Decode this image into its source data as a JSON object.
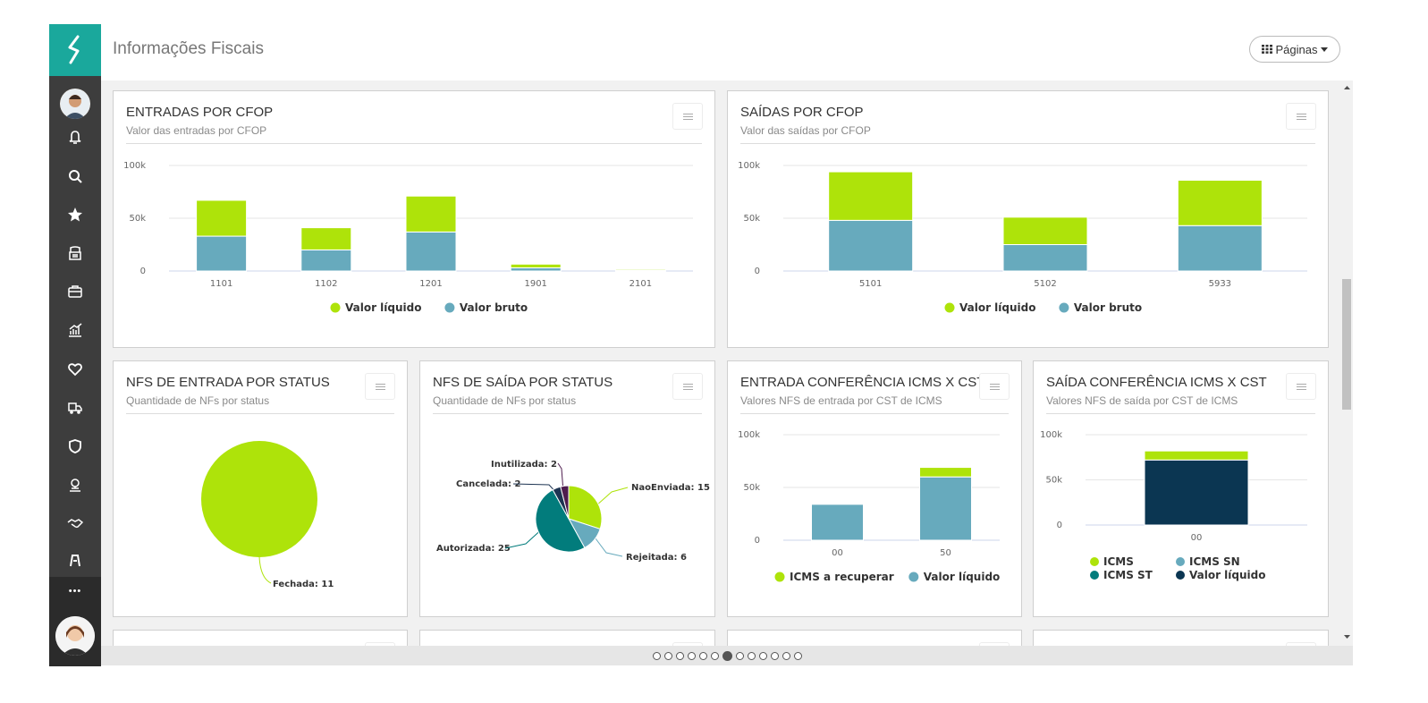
{
  "header": {
    "title": "Informações Fiscais",
    "pages_button": "Páginas"
  },
  "sidebar": {
    "icons": [
      "bell-icon",
      "search-icon",
      "star-icon",
      "printer-icon",
      "briefcase-icon",
      "chart-icon",
      "heart-icon",
      "truck-icon",
      "shield-icon",
      "gears-icon",
      "handshake-icon",
      "bank-icon"
    ],
    "more_label": "•••"
  },
  "colors": {
    "green": "#aee30a",
    "teal": "#67aabd",
    "dark_teal": "#027c7c",
    "navy": "#0b3652",
    "purple": "#4e1c4e",
    "navy2": "#1d3452"
  },
  "cards": {
    "entradas_cfop": {
      "title": "ENTRADAS POR CFOP",
      "subtitle": "Valor das entradas por CFOP",
      "chart_data": {
        "type": "bar",
        "stacked": true,
        "categories": [
          "1101",
          "1102",
          "1201",
          "1901",
          "2101"
        ],
        "series": [
          {
            "name": "Valor líquido",
            "color": "#aee30a",
            "values": [
              34000,
              21000,
              34000,
              3500,
              1000
            ]
          },
          {
            "name": "Valor bruto",
            "color": "#67aabd",
            "values": [
              33000,
              20000,
              37000,
              3000,
              800
            ]
          }
        ],
        "yticks": [
          "100k",
          "50k",
          "0"
        ],
        "ylim": [
          0,
          100000
        ],
        "legend": "bottom"
      }
    },
    "saidas_cfop": {
      "title": "SAÍDAS POR CFOP",
      "subtitle": "Valor das saídas por CFOP",
      "chart_data": {
        "type": "bar",
        "stacked": true,
        "categories": [
          "5101",
          "5102",
          "5933"
        ],
        "series": [
          {
            "name": "Valor líquido",
            "color": "#aee30a",
            "values": [
              46000,
              26000,
              43000
            ]
          },
          {
            "name": "Valor bruto",
            "color": "#67aabd",
            "values": [
              48000,
              25000,
              43000
            ]
          }
        ],
        "yticks": [
          "100k",
          "50k",
          "0"
        ],
        "ylim": [
          0,
          100000
        ],
        "legend": "bottom"
      }
    },
    "nfs_entrada_status": {
      "title": "NFS DE ENTRADA POR STATUS",
      "subtitle": "Quantidade de NFs por status",
      "chart_data": {
        "type": "pie",
        "slices": [
          {
            "label": "Fechada",
            "value": 11,
            "color": "#aee30a"
          }
        ]
      },
      "labels": [
        "Fechada: 11"
      ]
    },
    "nfs_saida_status": {
      "title": "NFS DE SAÍDA POR STATUS",
      "subtitle": "Quantidade de NFs por status",
      "chart_data": {
        "type": "pie",
        "slices": [
          {
            "label": "NaoEnviada",
            "value": 15,
            "color": "#aee30a"
          },
          {
            "label": "Rejeitada",
            "value": 6,
            "color": "#67aabd"
          },
          {
            "label": "Autorizada",
            "value": 25,
            "color": "#027c7c"
          },
          {
            "label": "Cancelada",
            "value": 2,
            "color": "#1d3452"
          },
          {
            "label": "Inutilizada",
            "value": 2,
            "color": "#4e1c4e"
          }
        ]
      },
      "labels": [
        "NaoEnviada: 15",
        "Rejeitada: 6",
        "Autorizada: 25",
        "Cancelada: 2",
        "Inutilizada: 2"
      ]
    },
    "entrada_icms_cst": {
      "title": "ENTRADA CONFERÊNCIA ICMS X CST",
      "subtitle": "Valores NFS de entrada por CST de ICMS",
      "chart_data": {
        "type": "bar",
        "stacked": true,
        "categories": [
          "00",
          "50"
        ],
        "series": [
          {
            "name": "ICMS a recuperar",
            "color": "#aee30a",
            "values": [
              0,
              9000
            ]
          },
          {
            "name": "Valor líquido",
            "color": "#67aabd",
            "values": [
              34000,
              60000
            ]
          }
        ],
        "yticks": [
          "100k",
          "50k",
          "0"
        ],
        "ylim": [
          0,
          100000
        ],
        "legend": "bottom"
      }
    },
    "saida_icms_cst": {
      "title": "SAÍDA CONFERÊNCIA ICMS X CST",
      "subtitle": "Valores NFS de saída por CST de ICMS",
      "chart_data": {
        "type": "bar",
        "stacked": true,
        "categories": [
          "00"
        ],
        "series": [
          {
            "name": "ICMS",
            "color": "#aee30a",
            "values": [
              10000
            ]
          },
          {
            "name": "ICMS SN",
            "color": "#67aabd",
            "values": [
              0
            ]
          },
          {
            "name": "ICMS ST",
            "color": "#027c7c",
            "values": [
              0
            ]
          },
          {
            "name": "Valor líquido",
            "color": "#0b3652",
            "values": [
              72000
            ]
          }
        ],
        "yticks": [
          "100k",
          "50k",
          "0"
        ],
        "ylim": [
          0,
          100000
        ],
        "legend": "bottom"
      }
    }
  },
  "pager": {
    "count": 13,
    "active": 6
  }
}
